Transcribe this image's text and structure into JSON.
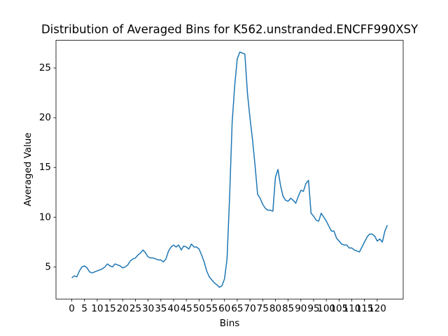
{
  "chart_data": {
    "type": "line",
    "title": "Distribution of Averaged Bins for K562.unstranded.ENCFF990XSY",
    "xlabel": "Bins",
    "ylabel": "Averaged Value",
    "x": [
      0,
      1,
      2,
      3,
      4,
      5,
      6,
      7,
      8,
      9,
      10,
      11,
      12,
      13,
      14,
      15,
      16,
      17,
      18,
      19,
      20,
      21,
      22,
      23,
      24,
      25,
      26,
      27,
      28,
      29,
      30,
      31,
      32,
      33,
      34,
      35,
      36,
      37,
      38,
      39,
      40,
      41,
      42,
      43,
      44,
      45,
      46,
      47,
      48,
      49,
      50,
      51,
      52,
      53,
      54,
      55,
      56,
      57,
      58,
      59,
      60,
      61,
      62,
      63,
      64,
      65,
      66,
      67,
      68,
      69,
      70,
      71,
      72,
      73,
      74,
      75,
      76,
      77,
      78,
      79,
      80,
      81,
      82,
      83,
      84,
      85,
      86,
      87,
      88,
      89,
      90,
      91,
      92,
      93,
      94,
      95,
      96,
      97,
      98,
      99,
      100,
      101,
      102,
      103,
      104,
      105,
      106,
      107,
      108,
      109,
      110,
      111,
      112,
      113,
      114,
      115,
      116,
      117,
      118,
      119,
      120,
      121,
      122,
      123,
      124
    ],
    "series": [
      {
        "name": "Averaged Value",
        "color": "#1f77b4",
        "values": [
          3.9,
          4.1,
          4.0,
          4.6,
          5.0,
          5.1,
          4.9,
          4.5,
          4.4,
          4.5,
          4.6,
          4.7,
          4.8,
          5.0,
          5.3,
          5.1,
          5.0,
          5.3,
          5.2,
          5.1,
          4.9,
          5.0,
          5.2,
          5.6,
          5.8,
          5.9,
          6.2,
          6.4,
          6.7,
          6.4,
          6.0,
          5.9,
          5.9,
          5.8,
          5.7,
          5.7,
          5.5,
          5.8,
          6.6,
          7.0,
          7.2,
          7.0,
          7.2,
          6.7,
          7.1,
          7.0,
          6.8,
          7.3,
          7.0,
          7.0,
          6.8,
          6.2,
          5.5,
          4.6,
          4.0,
          3.7,
          3.4,
          3.2,
          2.95,
          3.1,
          3.8,
          5.8,
          12.0,
          19.5,
          23.2,
          25.9,
          26.6,
          26.5,
          26.4,
          22.5,
          20.0,
          17.8,
          15.2,
          12.3,
          11.9,
          11.3,
          10.9,
          10.7,
          10.7,
          10.6,
          14.0,
          14.8,
          13.2,
          12.1,
          11.7,
          11.6,
          11.9,
          11.7,
          11.4,
          12.1,
          12.7,
          12.6,
          13.4,
          13.7,
          10.4,
          10.1,
          9.7,
          9.6,
          10.4,
          10.0,
          9.6,
          9.1,
          8.6,
          8.6,
          7.9,
          7.6,
          7.3,
          7.2,
          7.2,
          6.9,
          6.9,
          6.7,
          6.6,
          6.5,
          7.0,
          7.5,
          8.0,
          8.3,
          8.3,
          8.1,
          7.6,
          7.8,
          7.5,
          8.6,
          9.2
        ]
      }
    ],
    "xlim": [
      -6.2,
      130.2
    ],
    "ylim": [
      1.77,
      27.78
    ],
    "xticks": [
      0,
      5,
      10,
      15,
      20,
      25,
      30,
      35,
      40,
      45,
      50,
      55,
      60,
      65,
      70,
      75,
      80,
      85,
      90,
      95,
      100,
      105,
      110,
      115,
      120
    ],
    "yticks": [
      5,
      10,
      15,
      20,
      25
    ],
    "grid": false
  }
}
